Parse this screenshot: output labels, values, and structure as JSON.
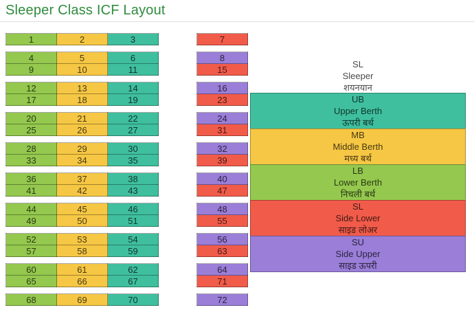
{
  "title": "Sleeper Class ICF Layout",
  "colors": {
    "title": "#2f8b3e",
    "LB": "#94c84e",
    "MB": "#f6c744",
    "UB": "#3fbf9e",
    "SL": "#f15b4a",
    "SU": "#9a7ed8"
  },
  "coach": {
    "column_types": [
      "LB",
      "MB",
      "UB"
    ],
    "main_bays": [
      [
        [
          1,
          2,
          3
        ]
      ],
      [
        [
          4,
          5,
          6
        ],
        [
          9,
          10,
          11
        ]
      ],
      [
        [
          12,
          13,
          14
        ],
        [
          17,
          18,
          19
        ]
      ],
      [
        [
          20,
          21,
          22
        ],
        [
          25,
          26,
          27
        ]
      ],
      [
        [
          28,
          29,
          30
        ],
        [
          33,
          34,
          35
        ]
      ],
      [
        [
          36,
          37,
          38
        ],
        [
          41,
          42,
          43
        ]
      ],
      [
        [
          44,
          45,
          46
        ],
        [
          49,
          50,
          51
        ]
      ],
      [
        [
          52,
          53,
          54
        ],
        [
          57,
          58,
          59
        ]
      ],
      [
        [
          60,
          61,
          62
        ],
        [
          65,
          66,
          67
        ]
      ],
      [
        [
          68,
          69,
          70
        ]
      ]
    ],
    "side_bays": [
      [
        {
          "n": 7,
          "t": "SL"
        }
      ],
      [
        {
          "n": 8,
          "t": "SU"
        },
        {
          "n": 15,
          "t": "SL"
        }
      ],
      [
        {
          "n": 16,
          "t": "SU"
        },
        {
          "n": 23,
          "t": "SL"
        }
      ],
      [
        {
          "n": 24,
          "t": "SU"
        },
        {
          "n": 31,
          "t": "SL"
        }
      ],
      [
        {
          "n": 32,
          "t": "SU"
        },
        {
          "n": 39,
          "t": "SL"
        }
      ],
      [
        {
          "n": 40,
          "t": "SU"
        },
        {
          "n": 47,
          "t": "SL"
        }
      ],
      [
        {
          "n": 48,
          "t": "SU"
        },
        {
          "n": 55,
          "t": "SL"
        }
      ],
      [
        {
          "n": 56,
          "t": "SU"
        },
        {
          "n": 63,
          "t": "SL"
        }
      ],
      [
        {
          "n": 64,
          "t": "SU"
        },
        {
          "n": 71,
          "t": "SL"
        }
      ],
      [
        {
          "n": 72,
          "t": "SU"
        }
      ]
    ]
  },
  "legend": {
    "header": {
      "code": "SL",
      "en": "Sleeper",
      "hi": "शयनयान"
    },
    "items": [
      {
        "code": "UB",
        "en": "Upper Berth",
        "hi": "ऊपरी बर्थ",
        "type": "UB"
      },
      {
        "code": "MB",
        "en": "Middle Berth",
        "hi": "मध्य बर्थ",
        "type": "MB"
      },
      {
        "code": "LB",
        "en": "Lower Berth",
        "hi": "निचली बर्थ",
        "type": "LB"
      },
      {
        "code": "SL",
        "en": "Side Lower",
        "hi": "साइड लोअर",
        "type": "SL"
      },
      {
        "code": "SU",
        "en": "Side Upper",
        "hi": "साइड ऊपरी",
        "type": "SU"
      }
    ]
  }
}
